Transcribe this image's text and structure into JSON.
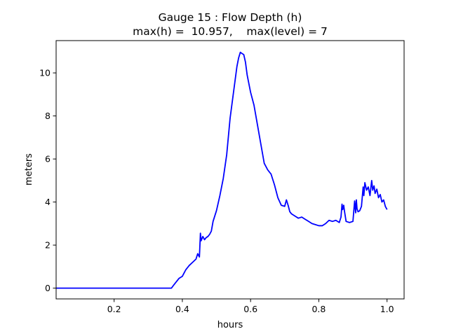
{
  "chart_data": {
    "type": "line",
    "title": "Gauge 15 : Flow Depth (h)",
    "subtitle": "max(h) =  10.957,    max(level) = 7",
    "xlabel": "hours",
    "ylabel": "meters",
    "xlim": [
      0.03,
      1.05
    ],
    "ylim": [
      -0.5,
      11.5
    ],
    "xticks": [
      0.2,
      0.4,
      0.6,
      0.8,
      1.0
    ],
    "xtick_labels": [
      "0.2",
      "0.4",
      "0.6",
      "0.8",
      "1.0"
    ],
    "yticks": [
      0,
      2,
      4,
      6,
      8,
      10
    ],
    "ytick_labels": [
      "0",
      "2",
      "4",
      "6",
      "8",
      "10"
    ],
    "grid": false,
    "series": [
      {
        "color": "#0000ff",
        "x": [
          0.03,
          0.1,
          0.2,
          0.3,
          0.36,
          0.368,
          0.375,
          0.38,
          0.39,
          0.4,
          0.405,
          0.41,
          0.42,
          0.43,
          0.44,
          0.445,
          0.45,
          0.453,
          0.455,
          0.46,
          0.465,
          0.47,
          0.475,
          0.48,
          0.485,
          0.49,
          0.5,
          0.51,
          0.52,
          0.53,
          0.54,
          0.55,
          0.56,
          0.565,
          0.57,
          0.575,
          0.58,
          0.585,
          0.59,
          0.6,
          0.61,
          0.62,
          0.63,
          0.64,
          0.65,
          0.66,
          0.67,
          0.68,
          0.69,
          0.7,
          0.705,
          0.71,
          0.715,
          0.72,
          0.73,
          0.74,
          0.75,
          0.76,
          0.77,
          0.78,
          0.79,
          0.8,
          0.81,
          0.82,
          0.83,
          0.84,
          0.85,
          0.86,
          0.865,
          0.868,
          0.87,
          0.873,
          0.875,
          0.88,
          0.89,
          0.9,
          0.905,
          0.908,
          0.91,
          0.912,
          0.915,
          0.92,
          0.925,
          0.93,
          0.932,
          0.935,
          0.94,
          0.945,
          0.95,
          0.955,
          0.958,
          0.962,
          0.965,
          0.97,
          0.975,
          0.98,
          0.985,
          0.99,
          0.995,
          1.0
        ],
        "y": [
          0,
          0,
          0,
          0,
          0,
          0,
          0.15,
          0.25,
          0.45,
          0.55,
          0.7,
          0.85,
          1.05,
          1.2,
          1.35,
          1.6,
          1.45,
          2.55,
          2.2,
          2.4,
          2.25,
          2.35,
          2.4,
          2.5,
          2.65,
          3.1,
          3.6,
          4.3,
          5.1,
          6.2,
          7.9,
          9.1,
          10.3,
          10.7,
          10.957,
          10.9,
          10.85,
          10.5,
          9.9,
          9.1,
          8.5,
          7.6,
          6.7,
          5.8,
          5.5,
          5.3,
          4.8,
          4.2,
          3.85,
          3.8,
          4.1,
          3.85,
          3.55,
          3.45,
          3.35,
          3.25,
          3.3,
          3.2,
          3.1,
          3.0,
          2.95,
          2.9,
          2.9,
          3.0,
          3.15,
          3.1,
          3.15,
          3.05,
          3.3,
          3.9,
          3.65,
          3.85,
          3.6,
          3.1,
          3.05,
          3.1,
          4.05,
          3.5,
          4.1,
          3.7,
          3.55,
          3.6,
          3.8,
          4.7,
          4.3,
          4.9,
          4.55,
          4.7,
          4.3,
          5.0,
          4.55,
          4.75,
          4.4,
          4.6,
          4.2,
          4.35,
          4.0,
          4.1,
          3.8,
          3.65
        ]
      }
    ]
  }
}
